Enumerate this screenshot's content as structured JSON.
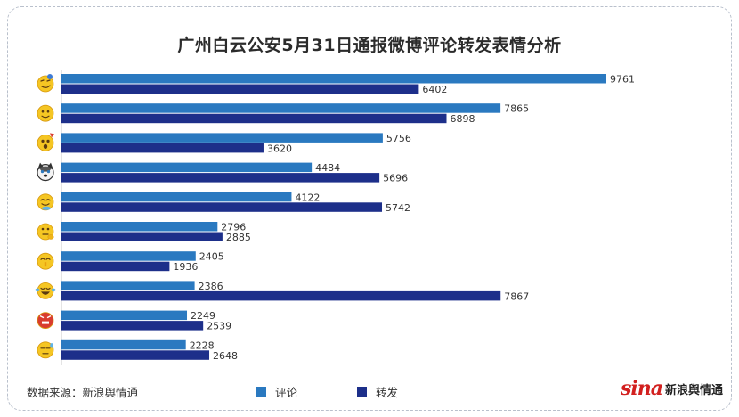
{
  "title": "广州白云公安5月31日通报微博评论转发表情分析",
  "source": "数据来源：新浪舆情通",
  "brand": {
    "word": "sina",
    "cn": "新浪舆情通"
  },
  "colors": {
    "comments": "#2a79c0",
    "reposts": "#1d2f8a",
    "emoji_face": "#f5c623",
    "emoji_red": "#d93c2f"
  },
  "chart_data": {
    "type": "bar",
    "orientation": "horizontal",
    "categories": [
      "smirk-face",
      "smile-face",
      "shocked-face",
      "husky-dog",
      "drool-face",
      "thinking-face",
      "shush-face",
      "laugh-cry-face",
      "angry-face",
      "sweat-face"
    ],
    "series": [
      {
        "name": "评论",
        "values": [
          9761,
          7865,
          5756,
          4484,
          4122,
          2796,
          2405,
          2386,
          2249,
          2228
        ]
      },
      {
        "name": "转发",
        "values": [
          6402,
          6898,
          3620,
          5696,
          5742,
          2885,
          1936,
          7867,
          2539,
          2648
        ]
      }
    ],
    "xlim": [
      0,
      10000
    ],
    "grid": false,
    "legend_position": "bottom",
    "title": "广州白云公安5月31日通报微博评论转发表情分析"
  }
}
